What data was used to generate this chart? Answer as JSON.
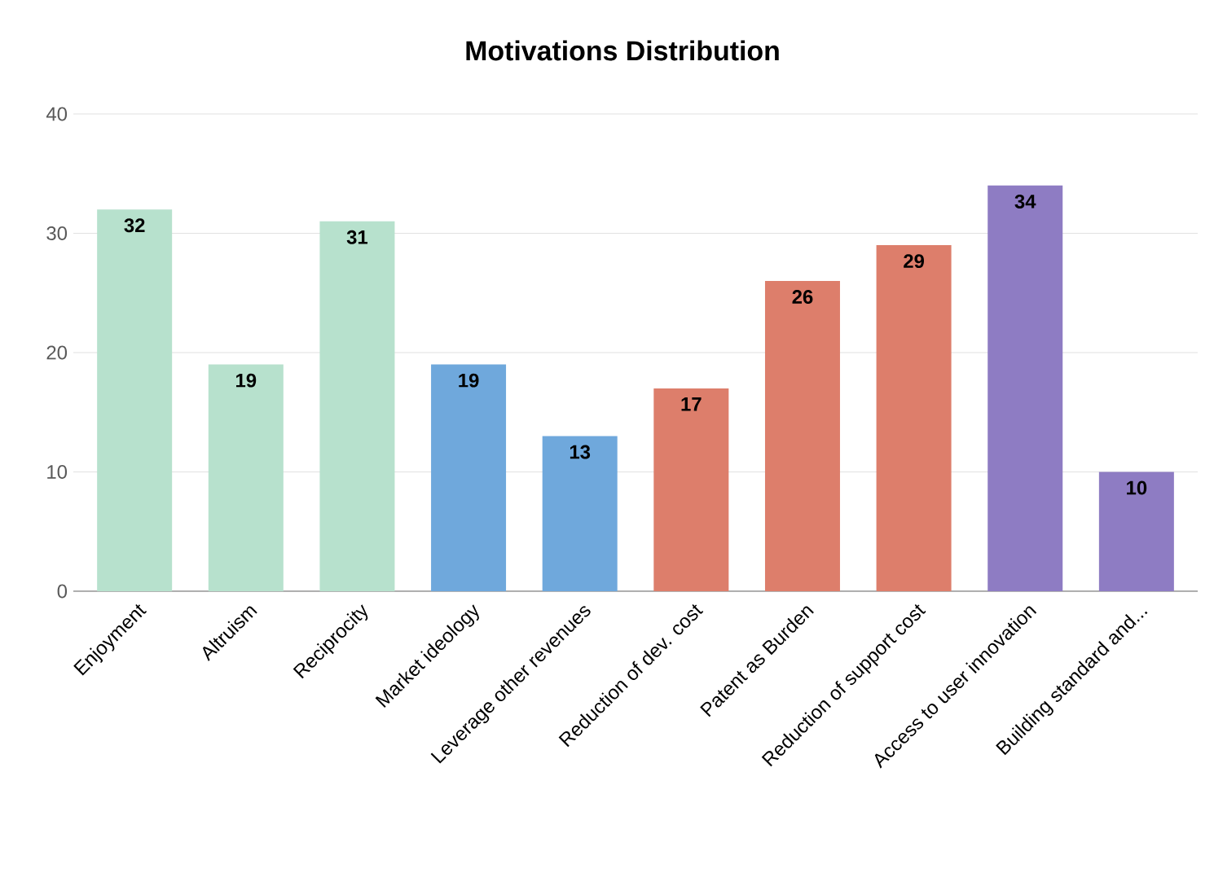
{
  "chart_data": {
    "type": "bar",
    "title": "Motivations Distribution",
    "categories": [
      "Enjoyment",
      "Altruism",
      "Reciprocity",
      "Market ideology",
      "Leverage other revenues",
      "Reduction of dev. cost",
      "Patent as Burden",
      "Reduction of support cost",
      "Access to user innovation",
      "Building standard and..."
    ],
    "values": [
      32,
      19,
      31,
      19,
      13,
      17,
      26,
      29,
      34,
      10
    ],
    "colors": [
      "#b7e1cd",
      "#b7e1cd",
      "#b7e1cd",
      "#6fa8dc",
      "#6fa8dc",
      "#dd7e6b",
      "#dd7e6b",
      "#dd7e6b",
      "#8e7cc3",
      "#8e7cc3"
    ],
    "ylim": [
      0,
      40
    ],
    "yticks": [
      0,
      10,
      20,
      30,
      40
    ],
    "grid": "y",
    "data_labels": true
  }
}
